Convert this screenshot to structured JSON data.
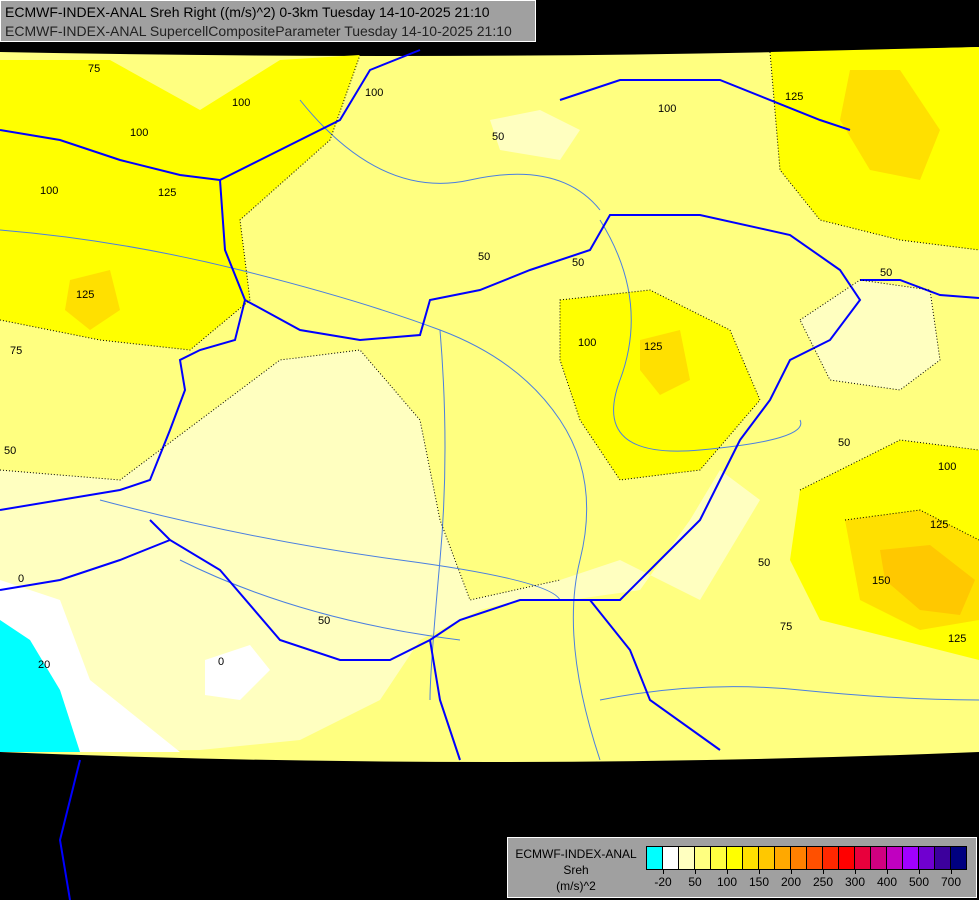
{
  "header": {
    "line1": "ECMWF-INDEX-ANAL Sreh Right ((m/s)^2) 0-3km Tuesday 14-10-2025 21:10",
    "line2": "ECMWF-INDEX-ANAL SupercellCompositeParameter Tuesday 14-10-2025 21:10"
  },
  "legend": {
    "model": "ECMWF-INDEX-ANAL",
    "parameter": "Sreh",
    "unit": "(m/s)^2",
    "colors": [
      "#00ffff",
      "#ffffff",
      "#ffffc0",
      "#ffff80",
      "#ffff40",
      "#ffff00",
      "#ffe000",
      "#ffc800",
      "#ffa800",
      "#ff8000",
      "#ff5000",
      "#ff2800",
      "#ff0000",
      "#e8003c",
      "#d00080",
      "#c000c0",
      "#a000ff",
      "#7000d0",
      "#3c009c",
      "#000080"
    ],
    "ticks": [
      "-20",
      "50",
      "100",
      "150",
      "200",
      "250",
      "300",
      "400",
      "500",
      "700"
    ]
  },
  "map": {
    "contour_labels": [
      "75",
      "100",
      "100",
      "125",
      "100",
      "125",
      "75",
      "50",
      "100",
      "50",
      "50",
      "100",
      "125",
      "50",
      "100",
      "125",
      "50",
      "125",
      "50",
      "100",
      "125",
      "150",
      "50",
      "75",
      "50",
      "0",
      "0",
      "20"
    ],
    "colors": {
      "border": "#0000ff",
      "river": "#4a7fe0",
      "background": "#000000"
    }
  }
}
